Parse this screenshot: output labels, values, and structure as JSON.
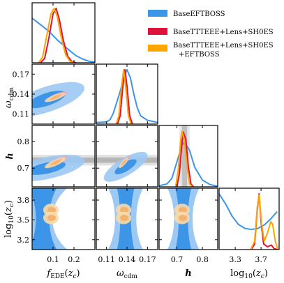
{
  "chart_data": {
    "type": "corner",
    "parameters": [
      {
        "key": "fEDE",
        "label_main": "f",
        "label_sub": "EDE",
        "label_tail": "(z_c)",
        "range": [
          0.0,
          0.3
        ],
        "ticks": [
          0.1,
          0.2
        ],
        "tick_labels": [
          "0.1",
          "0.2"
        ]
      },
      {
        "key": "omega_cdm",
        "label_main": "ω",
        "label_sub": "cdm",
        "label_tail": "",
        "range": [
          0.095,
          0.185
        ],
        "ticks": [
          0.11,
          0.14,
          0.17
        ],
        "tick_labels": [
          "0.11",
          "0.14",
          "0.17"
        ]
      },
      {
        "key": "h",
        "label_main": "h",
        "label_sub": "",
        "label_tail": "",
        "range": [
          0.63,
          0.86
        ],
        "ticks": [
          0.7,
          0.8
        ],
        "tick_labels": [
          "0.7",
          "0.8"
        ]
      },
      {
        "key": "log10zc",
        "label_main": "log",
        "label_sub": "10",
        "label_tail": "(z_c)",
        "range": [
          3.05,
          3.98
        ],
        "ticks": [
          3.2,
          3.5,
          3.8
        ],
        "tick_labels": [
          "3.2",
          "3.5",
          "3.8"
        ],
        "x_ticks": [
          3.3,
          3.7
        ],
        "x_tick_labels": [
          "3.3",
          "3.7"
        ]
      }
    ],
    "legend": {
      "placement": "top-right",
      "entries": [
        {
          "label": "BaseEFTBOSS",
          "color": "#3d95e8"
        },
        {
          "label": "BaseTTTEEE+Lens+SH0ES",
          "color": "#dc143c"
        },
        {
          "label": "BaseTTTEEE+Lens+SH0ES",
          "label2": "+EFTBOSS",
          "color": "#ffa500"
        }
      ]
    },
    "series": [
      {
        "name": "BaseEFTBOSS",
        "color": "#3d95e8",
        "fill_outer": "#9cc9f3",
        "fill_inner": "#3d95e8"
      },
      {
        "name": "BaseTTTEEE+Lens+SH0ES",
        "color": "#dc143c",
        "fill_outer": "#f0a6b4",
        "fill_inner": "#dc143c"
      },
      {
        "name": "BaseTTTEEE+Lens+SH0ES +EFTBOSS",
        "color": "#ffa500",
        "fill_outer": "#f9d9a8",
        "fill_inner": "#f3b26e"
      }
    ],
    "shoes_band": {
      "h_mean": 0.73,
      "h_sigma": 0.01,
      "colors": [
        "#c8c8c8",
        "#9a9a9a"
      ]
    },
    "marginals_1d": {
      "fEDE": {
        "BaseEFTBOSS": [
          [
            0,
            0.82
          ],
          [
            0.02,
            0.76
          ],
          [
            0.05,
            0.67
          ],
          [
            0.08,
            0.58
          ],
          [
            0.1,
            0.5
          ],
          [
            0.12,
            0.42
          ],
          [
            0.15,
            0.32
          ],
          [
            0.18,
            0.22
          ],
          [
            0.21,
            0.13
          ],
          [
            0.24,
            0.07
          ],
          [
            0.27,
            0.03
          ],
          [
            0.3,
            0.01
          ]
        ],
        "BaseTTTEEE+Lens+SH0ES": [
          [
            0.04,
            0
          ],
          [
            0.06,
            0.08
          ],
          [
            0.08,
            0.45
          ],
          [
            0.1,
            0.9
          ],
          [
            0.115,
            1.0
          ],
          [
            0.13,
            0.8
          ],
          [
            0.15,
            0.4
          ],
          [
            0.17,
            0.12
          ],
          [
            0.19,
            0.02
          ],
          [
            0.21,
            0
          ]
        ],
        "BaseTTTEEE+Lens+SH0ES +EFTBOSS": [
          [
            0.03,
            0
          ],
          [
            0.05,
            0.1
          ],
          [
            0.07,
            0.5
          ],
          [
            0.09,
            0.9
          ],
          [
            0.105,
            1.0
          ],
          [
            0.12,
            0.85
          ],
          [
            0.14,
            0.45
          ],
          [
            0.16,
            0.15
          ],
          [
            0.18,
            0.03
          ],
          [
            0.2,
            0
          ]
        ]
      },
      "omega_cdm": {
        "BaseEFTBOSS": [
          [
            0.095,
            0.03
          ],
          [
            0.11,
            0.04
          ],
          [
            0.115,
            0.08
          ],
          [
            0.12,
            0.2
          ],
          [
            0.125,
            0.4
          ],
          [
            0.13,
            0.6
          ],
          [
            0.135,
            0.85
          ],
          [
            0.14,
            1.0
          ],
          [
            0.145,
            0.85
          ],
          [
            0.15,
            0.55
          ],
          [
            0.155,
            0.3
          ],
          [
            0.16,
            0.15
          ],
          [
            0.17,
            0.07
          ],
          [
            0.185,
            0.03
          ]
        ],
        "BaseTTTEEE+Lens+SH0ES": [
          [
            0.126,
            0
          ],
          [
            0.13,
            0.15
          ],
          [
            0.134,
            0.7
          ],
          [
            0.137,
            1.0
          ],
          [
            0.14,
            0.7
          ],
          [
            0.144,
            0.15
          ],
          [
            0.148,
            0
          ]
        ],
        "BaseTTTEEE+Lens+SH0ES +EFTBOSS": [
          [
            0.124,
            0
          ],
          [
            0.128,
            0.15
          ],
          [
            0.132,
            0.7
          ],
          [
            0.135,
            1.0
          ],
          [
            0.138,
            0.7
          ],
          [
            0.142,
            0.15
          ],
          [
            0.146,
            0
          ]
        ]
      },
      "h": {
        "BaseEFTBOSS": [
          [
            0.63,
            0.02
          ],
          [
            0.66,
            0.05
          ],
          [
            0.68,
            0.15
          ],
          [
            0.7,
            0.45
          ],
          [
            0.72,
            0.75
          ],
          [
            0.73,
            0.8
          ],
          [
            0.75,
            0.65
          ],
          [
            0.77,
            0.35
          ],
          [
            0.8,
            0.12
          ],
          [
            0.83,
            0.04
          ],
          [
            0.86,
            0.01
          ]
        ],
        "BaseTTTEEE+Lens+SH0ES": [
          [
            0.7,
            0
          ],
          [
            0.71,
            0.25
          ],
          [
            0.72,
            0.8
          ],
          [
            0.725,
            0.98
          ],
          [
            0.735,
            0.85
          ],
          [
            0.745,
            0.35
          ],
          [
            0.755,
            0.05
          ],
          [
            0.765,
            0
          ]
        ],
        "BaseTTTEEE+Lens+SH0ES +EFTBOSS": [
          [
            0.695,
            0
          ],
          [
            0.705,
            0.3
          ],
          [
            0.715,
            0.85
          ],
          [
            0.72,
            1.0
          ],
          [
            0.73,
            0.8
          ],
          [
            0.74,
            0.35
          ],
          [
            0.75,
            0.05
          ],
          [
            0.76,
            0
          ]
        ]
      },
      "log10zc": {
        "BaseEFTBOSS": [
          [
            3.05,
            1.0
          ],
          [
            3.15,
            0.82
          ],
          [
            3.25,
            0.6
          ],
          [
            3.35,
            0.45
          ],
          [
            3.45,
            0.38
          ],
          [
            3.55,
            0.36
          ],
          [
            3.65,
            0.38
          ],
          [
            3.75,
            0.44
          ],
          [
            3.85,
            0.55
          ],
          [
            3.95,
            0.68
          ]
        ],
        "BaseTTTEEE+Lens+SH0ES": [
          [
            3.55,
            0
          ],
          [
            3.6,
            0.1
          ],
          [
            3.64,
            0.7
          ],
          [
            3.67,
            1.0
          ],
          [
            3.7,
            0.5
          ],
          [
            3.74,
            0.1
          ],
          [
            3.8,
            0.05
          ],
          [
            3.86,
            0.08
          ],
          [
            3.9,
            0.02
          ],
          [
            3.95,
            0
          ]
        ],
        "BaseTTTEEE+Lens+SH0ES +EFTBOSS": [
          [
            3.54,
            0
          ],
          [
            3.6,
            0.15
          ],
          [
            3.64,
            0.75
          ],
          [
            3.67,
            0.98
          ],
          [
            3.71,
            0.45
          ],
          [
            3.75,
            0.15
          ],
          [
            3.8,
            0.3
          ],
          [
            3.85,
            0.5
          ],
          [
            3.88,
            0.45
          ],
          [
            3.92,
            0.15
          ],
          [
            3.96,
            0
          ]
        ]
      }
    },
    "contours_2d": {
      "omega_cdm_vs_fEDE": {
        "BaseEFTBOSS": {
          "corr": 0.65,
          "center": [
            0.07,
            0.132
          ],
          "sigma": [
            0.09,
            0.013
          ]
        },
        "BaseTTTEEE+Lens+SH0ES": {
          "corr": 0.8,
          "center": [
            0.12,
            0.137
          ],
          "sigma": [
            0.025,
            0.0035
          ]
        },
        "BaseTTTEEE+Lens+SH0ES +EFTBOSS": {
          "corr": 0.8,
          "center": [
            0.11,
            0.135
          ],
          "sigma": [
            0.025,
            0.0035
          ]
        }
      },
      "h_vs_fEDE": {
        "BaseEFTBOSS": {
          "corr": 0.55,
          "center": [
            0.07,
            0.7
          ],
          "sigma": [
            0.09,
            0.025
          ]
        },
        "BaseTTTEEE+Lens+SH0ES": {
          "corr": 0.8,
          "center": [
            0.12,
            0.725
          ],
          "sigma": [
            0.025,
            0.01
          ]
        },
        "BaseTTTEEE+Lens+SH0ES +EFTBOSS": {
          "corr": 0.8,
          "center": [
            0.11,
            0.72
          ],
          "sigma": [
            0.025,
            0.01
          ]
        }
      },
      "h_vs_omega_cdm": {
        "BaseEFTBOSS": {
          "corr": 0.75,
          "center": [
            0.138,
            0.705
          ],
          "sigma": [
            0.016,
            0.028
          ]
        },
        "BaseTTTEEE+Lens+SH0ES": {
          "corr": 0.85,
          "center": [
            0.137,
            0.725
          ],
          "sigma": [
            0.0035,
            0.01
          ]
        },
        "BaseTTTEEE+Lens+SH0ES +EFTBOSS": {
          "corr": 0.85,
          "center": [
            0.135,
            0.72
          ],
          "sigma": [
            0.0035,
            0.01
          ]
        }
      },
      "log10zc_row": {
        "BaseEFTBOSS_center_x": [
          0.05,
          0.138,
          0.725
        ],
        "blobs_x": [
          0.09,
          0.135,
          0.72
        ],
        "blobs_y": [
          3.65,
          3.53
        ]
      }
    }
  }
}
